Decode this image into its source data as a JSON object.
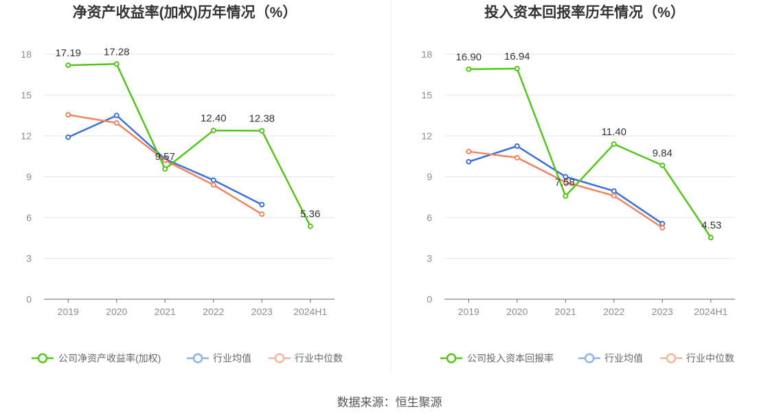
{
  "source": "数据来源：恒生聚源",
  "colors": {
    "company": "#52c41a",
    "industry_avg": "#3a6fdc",
    "industry_median": "#f0845a",
    "grid": "#e2e6ef",
    "axis": "#666666"
  },
  "chart_data": [
    {
      "type": "line",
      "title": "净资产收益率(加权)历年情况（%）",
      "categories": [
        "2019",
        "2020",
        "2021",
        "2022",
        "2023",
        "2024H1"
      ],
      "ylim": [
        0,
        18
      ],
      "yticks": [
        0,
        3,
        6,
        9,
        12,
        15,
        18
      ],
      "grid": true,
      "legend_position": "bottom",
      "series": [
        {
          "name": "公司净资产收益率(加权)",
          "color": "#52c41a",
          "values": [
            17.19,
            17.28,
            9.57,
            12.4,
            12.38,
            5.36
          ],
          "labels": [
            "17.19",
            "17.28",
            "9.57",
            "12.40",
            "12.38",
            "5.36"
          ]
        },
        {
          "name": "行业均值",
          "color": "#3a6fdc",
          "values": [
            11.9,
            13.5,
            10.3,
            8.75,
            6.95,
            null
          ]
        },
        {
          "name": "行业中位数",
          "color": "#f0845a",
          "values": [
            13.55,
            12.95,
            10.2,
            8.4,
            6.25,
            null
          ]
        }
      ]
    },
    {
      "type": "line",
      "title": "投入资本回报率历年情况（%）",
      "categories": [
        "2019",
        "2020",
        "2021",
        "2022",
        "2023",
        "2024H1"
      ],
      "ylim": [
        0,
        18
      ],
      "yticks": [
        0,
        3,
        6,
        9,
        12,
        15,
        18
      ],
      "grid": true,
      "legend_position": "bottom",
      "series": [
        {
          "name": "公司投入资本回报率",
          "color": "#52c41a",
          "values": [
            16.9,
            16.94,
            7.58,
            11.4,
            9.84,
            4.53
          ],
          "labels": [
            "16.90",
            "16.94",
            "7.58",
            "11.40",
            "9.84",
            "4.53"
          ]
        },
        {
          "name": "行业均值",
          "color": "#3a6fdc",
          "values": [
            10.1,
            11.25,
            9.0,
            7.95,
            5.55,
            null
          ]
        },
        {
          "name": "行业中位数",
          "color": "#f0845a",
          "values": [
            10.85,
            10.4,
            8.6,
            7.6,
            5.25,
            null
          ]
        }
      ]
    }
  ]
}
